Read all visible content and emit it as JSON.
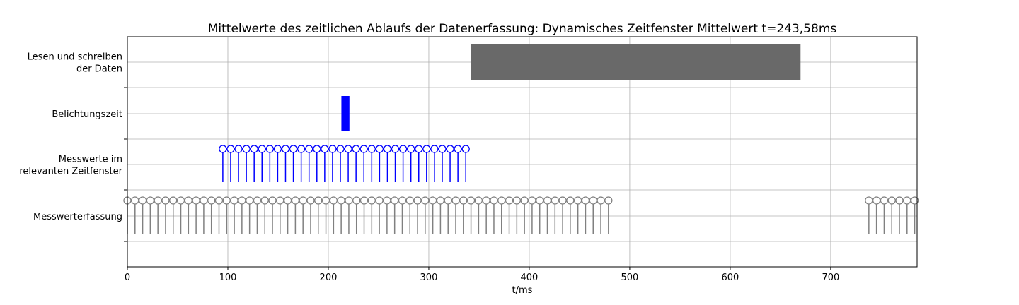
{
  "chart_data": {
    "type": "timeline",
    "title": "Mittelwerte des zeitlichen Ablaufs der Datenerfassung: Dynamisches Zeitfenster Mittelwert t=243,58ms",
    "xlabel": "t/ms",
    "xlim": [
      0,
      786
    ],
    "x_ticks": [
      0,
      100,
      200,
      300,
      400,
      500,
      600,
      700
    ],
    "grid": true,
    "rows": [
      {
        "lines": [
          "Lesen und schreiben ",
          "der Daten"
        ]
      },
      {
        "lines": [
          "Belichtungszeit"
        ]
      },
      {
        "lines": [
          "Messwerte im ",
          "relevanten Zeitfenster"
        ]
      },
      {
        "lines": [
          "Messwerterfassung"
        ]
      }
    ],
    "bars": [
      {
        "row": 0,
        "start": 342,
        "end": 670,
        "color": "#696969"
      },
      {
        "row": 1,
        "start": 213,
        "end": 221,
        "color": "#0000ff"
      }
    ],
    "stems": [
      {
        "row": 2,
        "color": "#0000ff",
        "start": 95,
        "step": 7.8,
        "count": 32
      },
      {
        "row": 3,
        "color": "#808080",
        "start": 0,
        "step": 7.6,
        "count": 64
      },
      {
        "row": 3,
        "color": "#808080",
        "start": 738,
        "step": 7.6,
        "count": 7
      }
    ]
  }
}
